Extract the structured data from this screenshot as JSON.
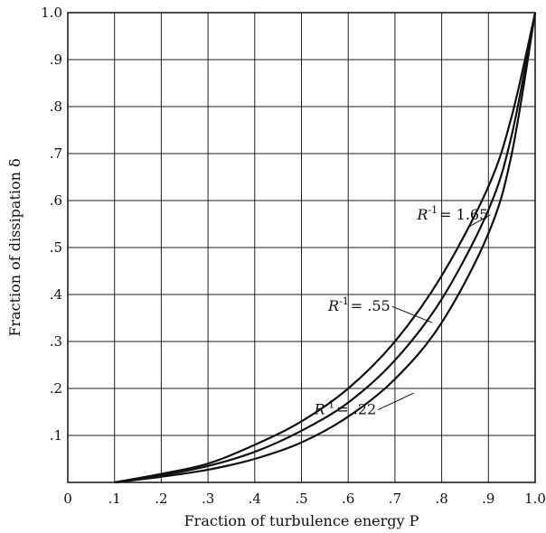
{
  "chart_data": {
    "type": "line",
    "xlabel": "Fraction of turbulence energy P",
    "ylabel": "Fraction of dissipation δ",
    "xlim": [
      0,
      1
    ],
    "ylim": [
      0,
      1
    ],
    "grid": true,
    "x_ticks": [
      "0",
      ".1",
      ".2",
      ".3",
      ".4",
      ".5",
      ".6",
      ".7",
      ".8",
      ".9",
      "1.0"
    ],
    "y_ticks": [
      ".1",
      ".2",
      ".3",
      ".4",
      ".5",
      ".6",
      ".7",
      ".8",
      ".9",
      "1.0"
    ],
    "series": [
      {
        "name": "R⁻¹ = 1.65",
        "x": [
          0.1,
          0.2,
          0.3,
          0.4,
          0.5,
          0.6,
          0.7,
          0.8,
          0.9,
          0.95,
          1.0
        ],
        "y": [
          0.0,
          0.018,
          0.04,
          0.08,
          0.13,
          0.2,
          0.3,
          0.44,
          0.63,
          0.78,
          1.0
        ]
      },
      {
        "name": "R⁻¹ = .55",
        "x": [
          0.1,
          0.2,
          0.3,
          0.4,
          0.5,
          0.6,
          0.7,
          0.8,
          0.9,
          0.95,
          1.0
        ],
        "y": [
          0.0,
          0.015,
          0.035,
          0.065,
          0.11,
          0.17,
          0.26,
          0.39,
          0.58,
          0.74,
          1.0
        ]
      },
      {
        "name": "R⁻¹ = .22",
        "x": [
          0.1,
          0.2,
          0.3,
          0.4,
          0.5,
          0.6,
          0.7,
          0.8,
          0.9,
          0.95,
          1.0
        ],
        "y": [
          0.0,
          0.012,
          0.027,
          0.05,
          0.085,
          0.14,
          0.22,
          0.34,
          0.53,
          0.7,
          1.0
        ]
      }
    ],
    "annotations": [
      {
        "label": "R",
        "sup": "-1",
        "value": "= 1.65",
        "series_index": 0,
        "point": [
          0.9,
          0.56
        ],
        "anchor": [
          0.86,
          0.545
        ]
      },
      {
        "label": "R",
        "sup": "-1",
        "value": "= .55",
        "series_index": 1,
        "point": [
          0.69,
          0.365
        ],
        "anchor": [
          0.78,
          0.34
        ]
      },
      {
        "label": "R",
        "sup": "-1",
        "value": "= .22",
        "series_index": 2,
        "point": [
          0.66,
          0.145
        ],
        "anchor": [
          0.74,
          0.19
        ]
      }
    ]
  }
}
